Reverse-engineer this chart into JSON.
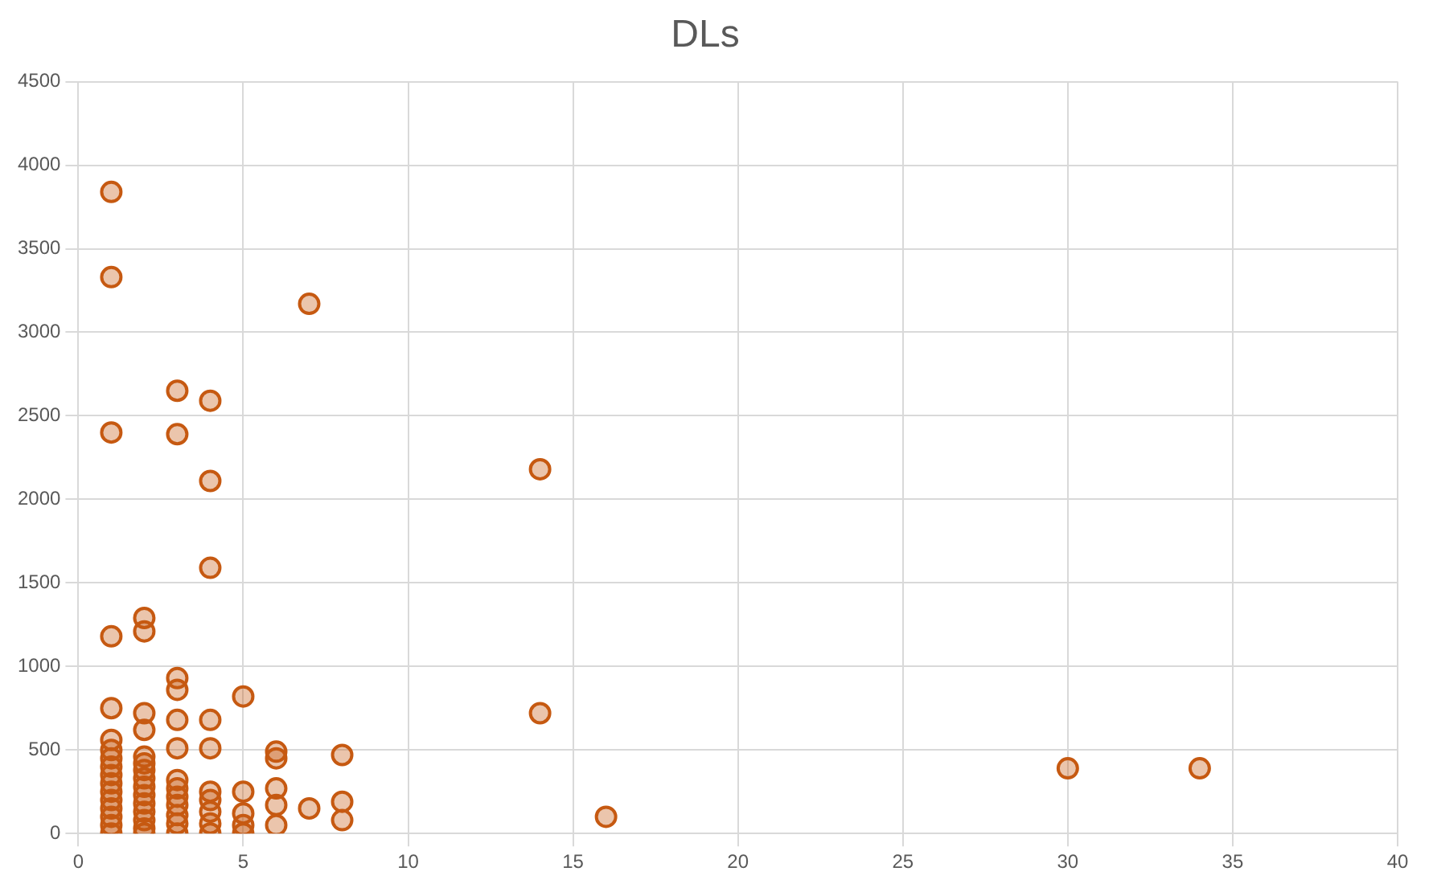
{
  "chart_data": {
    "type": "scatter",
    "title": "DLs",
    "series": [
      {
        "color": "#c65911",
        "x": [
          1,
          1,
          1,
          1,
          1,
          1,
          1,
          1,
          1,
          1,
          1,
          1,
          1,
          1,
          1,
          1,
          1,
          2,
          2,
          2,
          2,
          2,
          2,
          2,
          2,
          2,
          2,
          2,
          2,
          2,
          2,
          2,
          3,
          3,
          3,
          3,
          3,
          3,
          3,
          3,
          3,
          3,
          3,
          3,
          3,
          4,
          4,
          4,
          4,
          4,
          4,
          4,
          4,
          4,
          4,
          5,
          5,
          5,
          5,
          5,
          6,
          6,
          6,
          6,
          6,
          7,
          7,
          8,
          8,
          8,
          14,
          14,
          16,
          30,
          34
        ],
        "values": [
          3840,
          3330,
          2400,
          1180,
          750,
          560,
          500,
          450,
          400,
          350,
          300,
          250,
          200,
          150,
          100,
          50,
          0,
          1290,
          1210,
          720,
          620,
          460,
          420,
          380,
          330,
          280,
          230,
          180,
          130,
          80,
          30,
          0,
          2650,
          2390,
          930,
          860,
          680,
          510,
          320,
          270,
          220,
          170,
          110,
          60,
          0,
          2590,
          2110,
          1590,
          680,
          510,
          250,
          200,
          130,
          60,
          0,
          820,
          250,
          120,
          50,
          0,
          490,
          450,
          270,
          170,
          50,
          3170,
          150,
          470,
          190,
          80,
          2180,
          720,
          100,
          390,
          390
        ]
      }
    ],
    "xlim": [
      0,
      40
    ],
    "xticks": [
      0,
      5,
      10,
      15,
      20,
      25,
      30,
      35,
      40
    ],
    "ylim": [
      0,
      4500
    ],
    "yticks": [
      0,
      500,
      1000,
      1500,
      2000,
      2500,
      3000,
      3500,
      4000,
      4500
    ],
    "grid": true,
    "legend": false,
    "marker": "circle"
  }
}
